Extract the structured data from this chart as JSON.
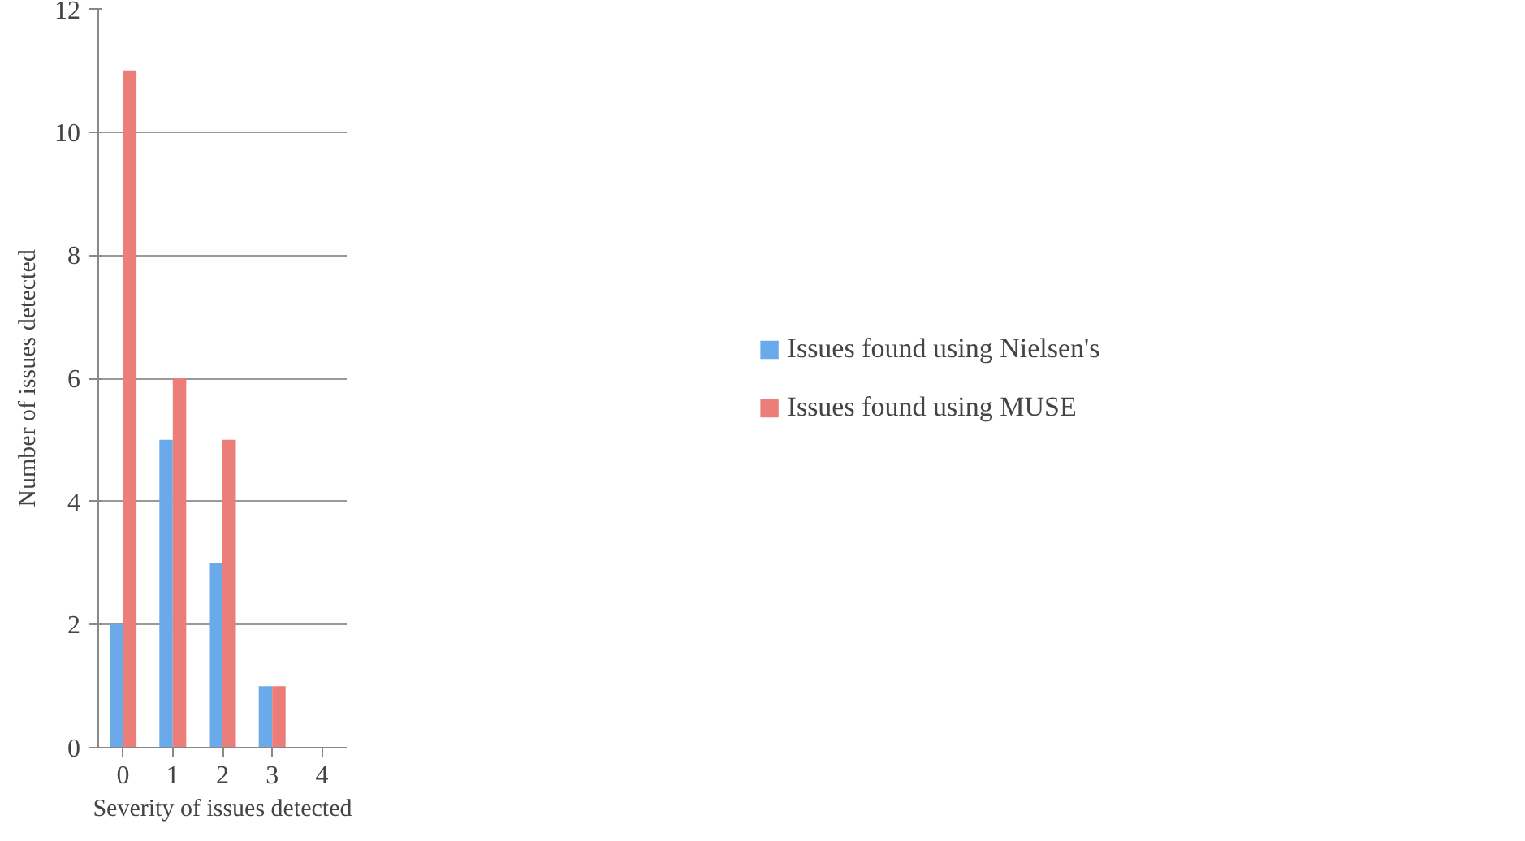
{
  "chart_data": {
    "type": "bar",
    "xlabel": "Severity of issues detected",
    "ylabel": "Number of issues detected",
    "categories": [
      "0",
      "1",
      "2",
      "3",
      "4"
    ],
    "series": [
      {
        "name": "Issues found using Nielsen's",
        "color": "#6aaaea",
        "values": [
          2,
          5,
          3,
          1,
          0
        ]
      },
      {
        "name": "Issues found using MUSE",
        "color": "#ec7e7a",
        "values": [
          11,
          6,
          5,
          1,
          0
        ]
      }
    ],
    "ylim": [
      0,
      12
    ],
    "yticks": [
      0,
      2,
      4,
      6,
      8,
      10,
      12
    ],
    "grid": "y",
    "legend": "right"
  }
}
